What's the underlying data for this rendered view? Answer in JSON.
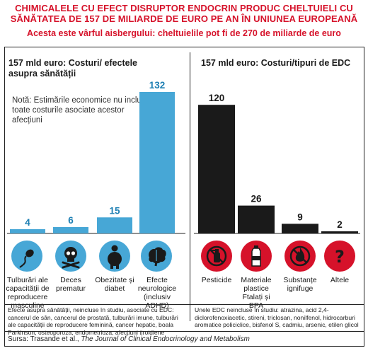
{
  "header": {
    "title": "CHIMICALELE CU EFECT DISRUPTOR ENDOCRIN PRODUC CHELTUIELI CU SĂNĂTATEA DE 157 DE MILIARDE DE EURO PE AN ÎN UNIUNEA EUROPEANĂ",
    "subtitle": "Acesta este vârful aisbergului: cheltuielile pot fi de 270 de miliarde de euro"
  },
  "left_panel": {
    "title": "157 mld euro: Costuri/ efectele asupra sănătății",
    "note": "Notă: Estimările economice nu includ toate costurile asociate acestor afecțiuni",
    "footnote": "Efecte asupra sănătății, neincluse în studiu, asociate cu EDC: cancerul de sân, cancerul de prostată, tulburări imune, tulburări ale capacității de reproducere feminină, cancer hepatic, boala Parkinson, osteoporoza, endometrioza, afecțiuni tiroidiene"
  },
  "right_panel": {
    "title": "157 mld euro: Costuri/tipuri de EDC",
    "footnote": "Unele EDC neincluse în studiu: atrazina, acid 2,4-diclorofenoxiacetic, stireni, triclosan, nonilfenol, hidrocarburi aromatice policiclice, bisfenol S, cadmiu, arsenic, etilen glicol"
  },
  "source": {
    "prefix": "Sursa: Trasande et al., ",
    "journal": "The Journal of Clinical Endocrinology and Metabolism"
  },
  "colors": {
    "accent": "#d6122a",
    "left_bar": "#47a7d6",
    "right_bar": "#1a1a1a"
  },
  "icons": {
    "left": [
      "sperm-icon",
      "skull-icon",
      "obesity-icon",
      "brain-icon"
    ],
    "right": [
      "no-spray-icon",
      "bottle-icon",
      "no-fire-icon",
      "question-mark-icon"
    ]
  },
  "chart_data": [
    {
      "type": "bar",
      "title": "157 mld euro: Costuri/ efectele asupra sănătății",
      "categories": [
        "Tulburări ale capacității de reproducere masculine",
        "Deces prematur",
        "Obezitate și diabet",
        "Efecte neurologice (inclusiv ADHD)"
      ],
      "values": [
        4,
        6,
        15,
        132
      ],
      "value_labels": [
        "4",
        "6",
        "15",
        "132"
      ],
      "ylim": [
        0,
        132
      ],
      "grid": false
    },
    {
      "type": "bar",
      "title": "157 mld euro: Costuri/tipuri de EDC",
      "categories": [
        "Pesticide",
        "Materiale plastice Ftalați și BPA",
        "Substanțe ignifuge",
        "Altele"
      ],
      "values": [
        120,
        26,
        9,
        2
      ],
      "value_labels": [
        "120",
        "26",
        "9",
        "2"
      ],
      "ylim": [
        0,
        132
      ],
      "grid": false
    }
  ]
}
